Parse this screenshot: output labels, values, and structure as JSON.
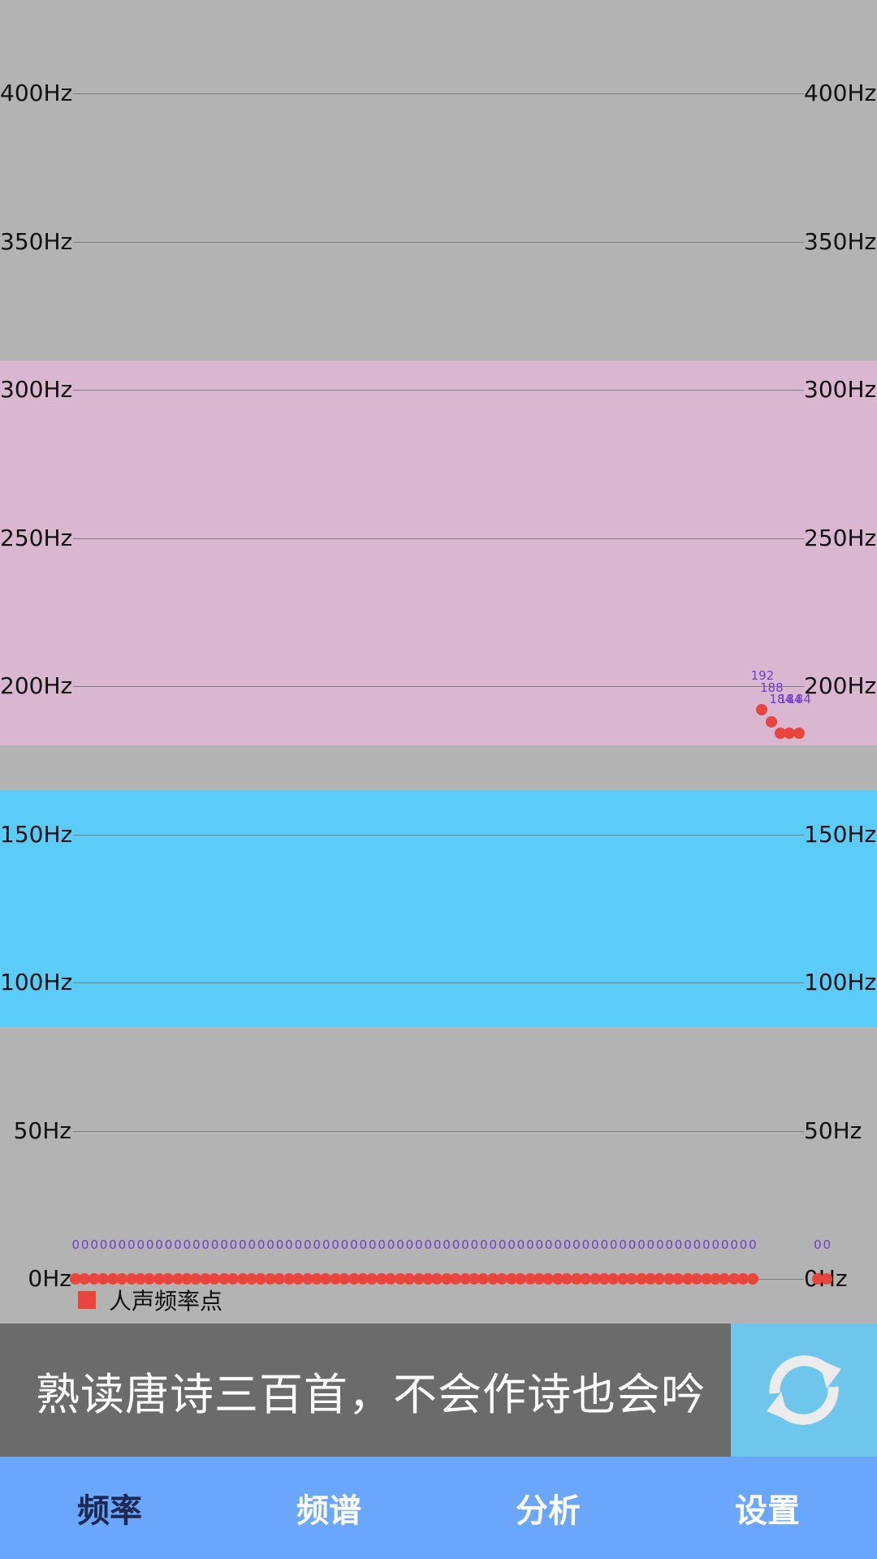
{
  "chart_data": {
    "type": "scatter",
    "title": "",
    "xlabel": "",
    "ylabel": "",
    "ylim": [
      0,
      400
    ],
    "y_ticks": [
      "0Hz",
      "50Hz",
      "100Hz",
      "150Hz",
      "200Hz",
      "250Hz",
      "300Hz",
      "350Hz",
      "400Hz"
    ],
    "grid": true,
    "bands": [
      {
        "from": 180,
        "to": 310,
        "color": "#dab7d0"
      },
      {
        "from": 85,
        "to": 165,
        "color": "#5bcbf7"
      }
    ],
    "series": [
      {
        "name": "人声频率点",
        "color": "#e8453c",
        "label_color": "#6d3fc6",
        "values": [
          0,
          0,
          0,
          0,
          0,
          0,
          0,
          0,
          0,
          0,
          0,
          0,
          0,
          0,
          0,
          0,
          0,
          0,
          0,
          0,
          0,
          0,
          0,
          0,
          0,
          0,
          0,
          0,
          0,
          0,
          0,
          0,
          0,
          0,
          0,
          0,
          0,
          0,
          0,
          0,
          0,
          0,
          0,
          0,
          0,
          0,
          0,
          0,
          0,
          0,
          0,
          0,
          0,
          0,
          0,
          0,
          0,
          0,
          0,
          0,
          0,
          0,
          0,
          0,
          0,
          0,
          0,
          0,
          0,
          0,
          0,
          0,
          0,
          0,
          192,
          188,
          184,
          184,
          184,
          null,
          0,
          0
        ]
      }
    ],
    "legend": {
      "label": "人声频率点",
      "position": "bottom-left"
    }
  },
  "banner": {
    "quote": "熟读唐诗三百首，不会作诗也会吟"
  },
  "tabs": [
    {
      "label": "频率",
      "active": true
    },
    {
      "label": "频谱",
      "active": false
    },
    {
      "label": "分析",
      "active": false
    },
    {
      "label": "设置",
      "active": false
    }
  ]
}
